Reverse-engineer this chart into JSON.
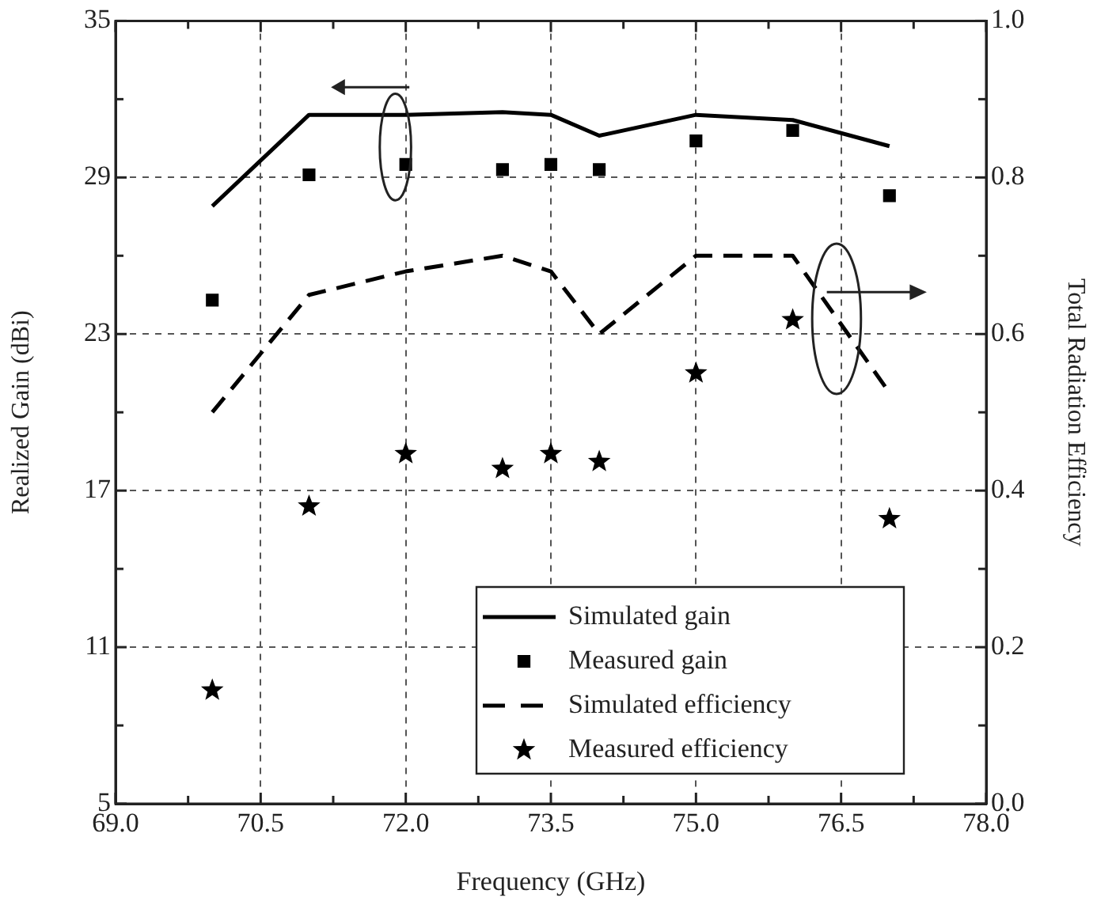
{
  "chart_data": {
    "type": "line",
    "xlabel": "Frequency (GHz)",
    "ylabel": "Realized Gain (dBi)",
    "y2label": "Total Radiation Efficiency",
    "xlim": [
      69,
      78
    ],
    "xticks": [
      {
        "value": 69,
        "label": "69.0"
      },
      {
        "value": 69.75,
        "label": null
      },
      {
        "value": 70.5,
        "label": "70.5"
      },
      {
        "value": 71.25,
        "label": null
      },
      {
        "value": 72,
        "label": "72.0"
      },
      {
        "value": 72.75,
        "label": null
      },
      {
        "value": 73.5,
        "label": "73.5"
      },
      {
        "value": 74.25,
        "label": null
      },
      {
        "value": 75,
        "label": "75.0"
      },
      {
        "value": 75.75,
        "label": null
      },
      {
        "value": 76.5,
        "label": "76.5"
      },
      {
        "value": 77.25,
        "label": null
      },
      {
        "value": 78,
        "label": "78.0"
      }
    ],
    "ylim": [
      5,
      35
    ],
    "yticks": [
      5,
      {
        "value": 8,
        "label": null
      },
      11,
      {
        "value": 14,
        "label": null
      },
      17,
      {
        "value": 20,
        "label": null
      },
      23,
      {
        "value": 26,
        "label": null
      },
      29,
      {
        "value": 32,
        "label": null
      },
      35
    ],
    "y2lim": [
      0,
      1
    ],
    "y2ticks": [
      {
        "value": 0,
        "label": "0.0"
      },
      {
        "value": 0.1,
        "label": null
      },
      {
        "value": 0.2,
        "label": "0.2"
      },
      {
        "value": 0.3,
        "label": null
      },
      {
        "value": 0.4,
        "label": "0.4"
      },
      {
        "value": 0.5,
        "label": null
      },
      {
        "value": 0.6,
        "label": "0.6"
      },
      {
        "value": 0.7,
        "label": null
      },
      {
        "value": 0.8,
        "label": "0.8"
      },
      {
        "value": 0.9,
        "label": null
      },
      {
        "value": 1,
        "label": "1.0"
      }
    ],
    "x": [
      70,
      71,
      72,
      73,
      73.5,
      74,
      75,
      76,
      77
    ],
    "grid": true,
    "legend": "bottom right",
    "series": [
      {
        "name": "Simulated gain",
        "color": "#000000",
        "marker": "none",
        "line_style": "solid",
        "values": [
          27.9,
          31.4,
          31.4,
          31.5,
          31.4,
          30.6,
          31.4,
          31.2,
          30.2
        ]
      },
      {
        "name": "Measured gain",
        "type": "scatter",
        "color": "#000000",
        "marker": "square",
        "values": [
          24.3,
          29.1,
          29.5,
          29.3,
          29.5,
          29.3,
          30.4,
          30.8,
          28.3
        ]
      },
      {
        "name": "Simulated efficiency",
        "axis": "y2",
        "color": "#000000",
        "marker": "none",
        "line_style": "dashed",
        "values": [
          0.5,
          0.65,
          0.68,
          0.7,
          0.68,
          0.6,
          0.7,
          0.7,
          0.525
        ]
      },
      {
        "name": "Measured efficiency",
        "type": "scatter",
        "axis": "y2",
        "color": "#000000",
        "marker": "star",
        "values": [
          0.145,
          0.38,
          0.447,
          0.428,
          0.447,
          0.437,
          0.55,
          0.618,
          0.364
        ]
      }
    ]
  }
}
